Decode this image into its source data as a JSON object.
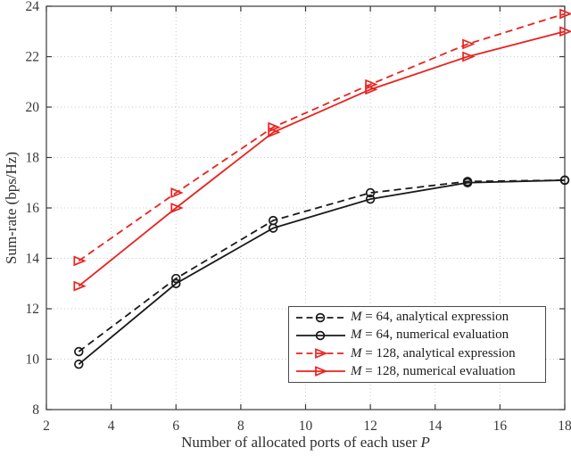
{
  "figure": {
    "background": "#ffffff",
    "axis_color": "#3a3a3a",
    "grid_color": "#c9c9c9"
  },
  "chart_data": {
    "type": "line",
    "title": "",
    "xlabel": {
      "text": "Number of allocated ports of each user",
      "math_var": "P"
    },
    "ylabel": "Sum-rate (bps/Hz)",
    "xlim": [
      2,
      18
    ],
    "ylim": [
      8,
      24
    ],
    "xticks": [
      2,
      4,
      6,
      8,
      10,
      12,
      14,
      16,
      18
    ],
    "yticks": [
      8,
      10,
      12,
      14,
      16,
      18,
      20,
      22,
      24
    ],
    "grid": "dotted",
    "legend_position": "lower-right-inside",
    "x": [
      3,
      6,
      9,
      12,
      15,
      18
    ],
    "series": [
      {
        "name_var": "M",
        "name_rest": " = 64, analytical expression",
        "color": "#1a1a1a",
        "line": "dashed",
        "marker": "circle",
        "values": [
          10.3,
          13.2,
          15.5,
          16.6,
          17.05,
          17.1
        ]
      },
      {
        "name_var": "M",
        "name_rest": " = 64, numerical evaluation",
        "color": "#1a1a1a",
        "line": "solid",
        "marker": "circle",
        "values": [
          9.8,
          13.0,
          15.2,
          16.35,
          17.0,
          17.1
        ]
      },
      {
        "name_var": "M",
        "name_rest": " = 128, analytical expression",
        "color": "#e8231f",
        "line": "dashed",
        "marker": "triangle-right",
        "values": [
          13.9,
          16.6,
          19.2,
          20.9,
          22.5,
          23.7
        ]
      },
      {
        "name_var": "M",
        "name_rest": " = 128, numerical evaluation",
        "color": "#e8231f",
        "line": "solid",
        "marker": "triangle-right",
        "values": [
          12.9,
          16.0,
          19.0,
          20.7,
          22.0,
          23.0
        ]
      }
    ]
  }
}
